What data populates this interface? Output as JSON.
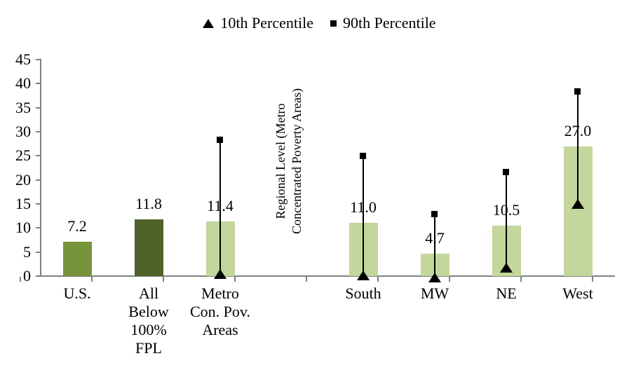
{
  "chart_data": {
    "type": "bar",
    "title": "",
    "legend": [
      {
        "marker": "triangle-marker-icon",
        "label": "10th Percentile"
      },
      {
        "marker": "square-marker-icon",
        "label": "90th Percentile"
      }
    ],
    "y_axis": {
      "min": 0,
      "max": 45,
      "tick_step": 5,
      "ticks": [
        0,
        5,
        10,
        15,
        20,
        25,
        30,
        35,
        40,
        45
      ]
    },
    "inner_axis_label": "Regional Level (Metro\nConcentrated Poverty Areas)",
    "bars": [
      {
        "slot": 0,
        "label": "U.S.",
        "value": 7.2,
        "value_label": "7.2",
        "color": "#77933C",
        "p10": null,
        "p90": null
      },
      {
        "slot": 1,
        "label": "All\nBelow\n100%\nFPL",
        "value": 11.8,
        "value_label": "11.8",
        "color": "#4F6228",
        "p10": null,
        "p90": null
      },
      {
        "slot": 2,
        "label": "Metro\nCon. Pov.\nAreas",
        "value": 11.4,
        "value_label": "11.4",
        "color": "#C3D69B",
        "p10": 0.4,
        "p90": 28.4
      },
      {
        "slot": 4,
        "label": "South",
        "value": 11.0,
        "value_label": "11.0",
        "color": "#C3D69B",
        "p10": 0.1,
        "p90": 25.0
      },
      {
        "slot": 5,
        "label": "MW",
        "value": 4.7,
        "value_label": "4.7",
        "color": "#C3D69B",
        "p10": -0.3,
        "p90": 13.0
      },
      {
        "slot": 6,
        "label": "NE",
        "value": 10.5,
        "value_label": "10.5",
        "color": "#C3D69B",
        "p10": 1.8,
        "p90": 21.7
      },
      {
        "slot": 7,
        "label": "West",
        "value": 27.0,
        "value_label": "27.0",
        "color": "#C3D69B",
        "p10": 15.0,
        "p90": 38.5
      }
    ],
    "colors": {
      "axis": "#808080",
      "marker": "#000000",
      "bar_medium": "#77933C",
      "bar_dark": "#4F6228",
      "bar_light": "#C3D69B"
    },
    "layout": {
      "grid": false,
      "legend_position": "top-center",
      "n_slots": 8
    }
  }
}
